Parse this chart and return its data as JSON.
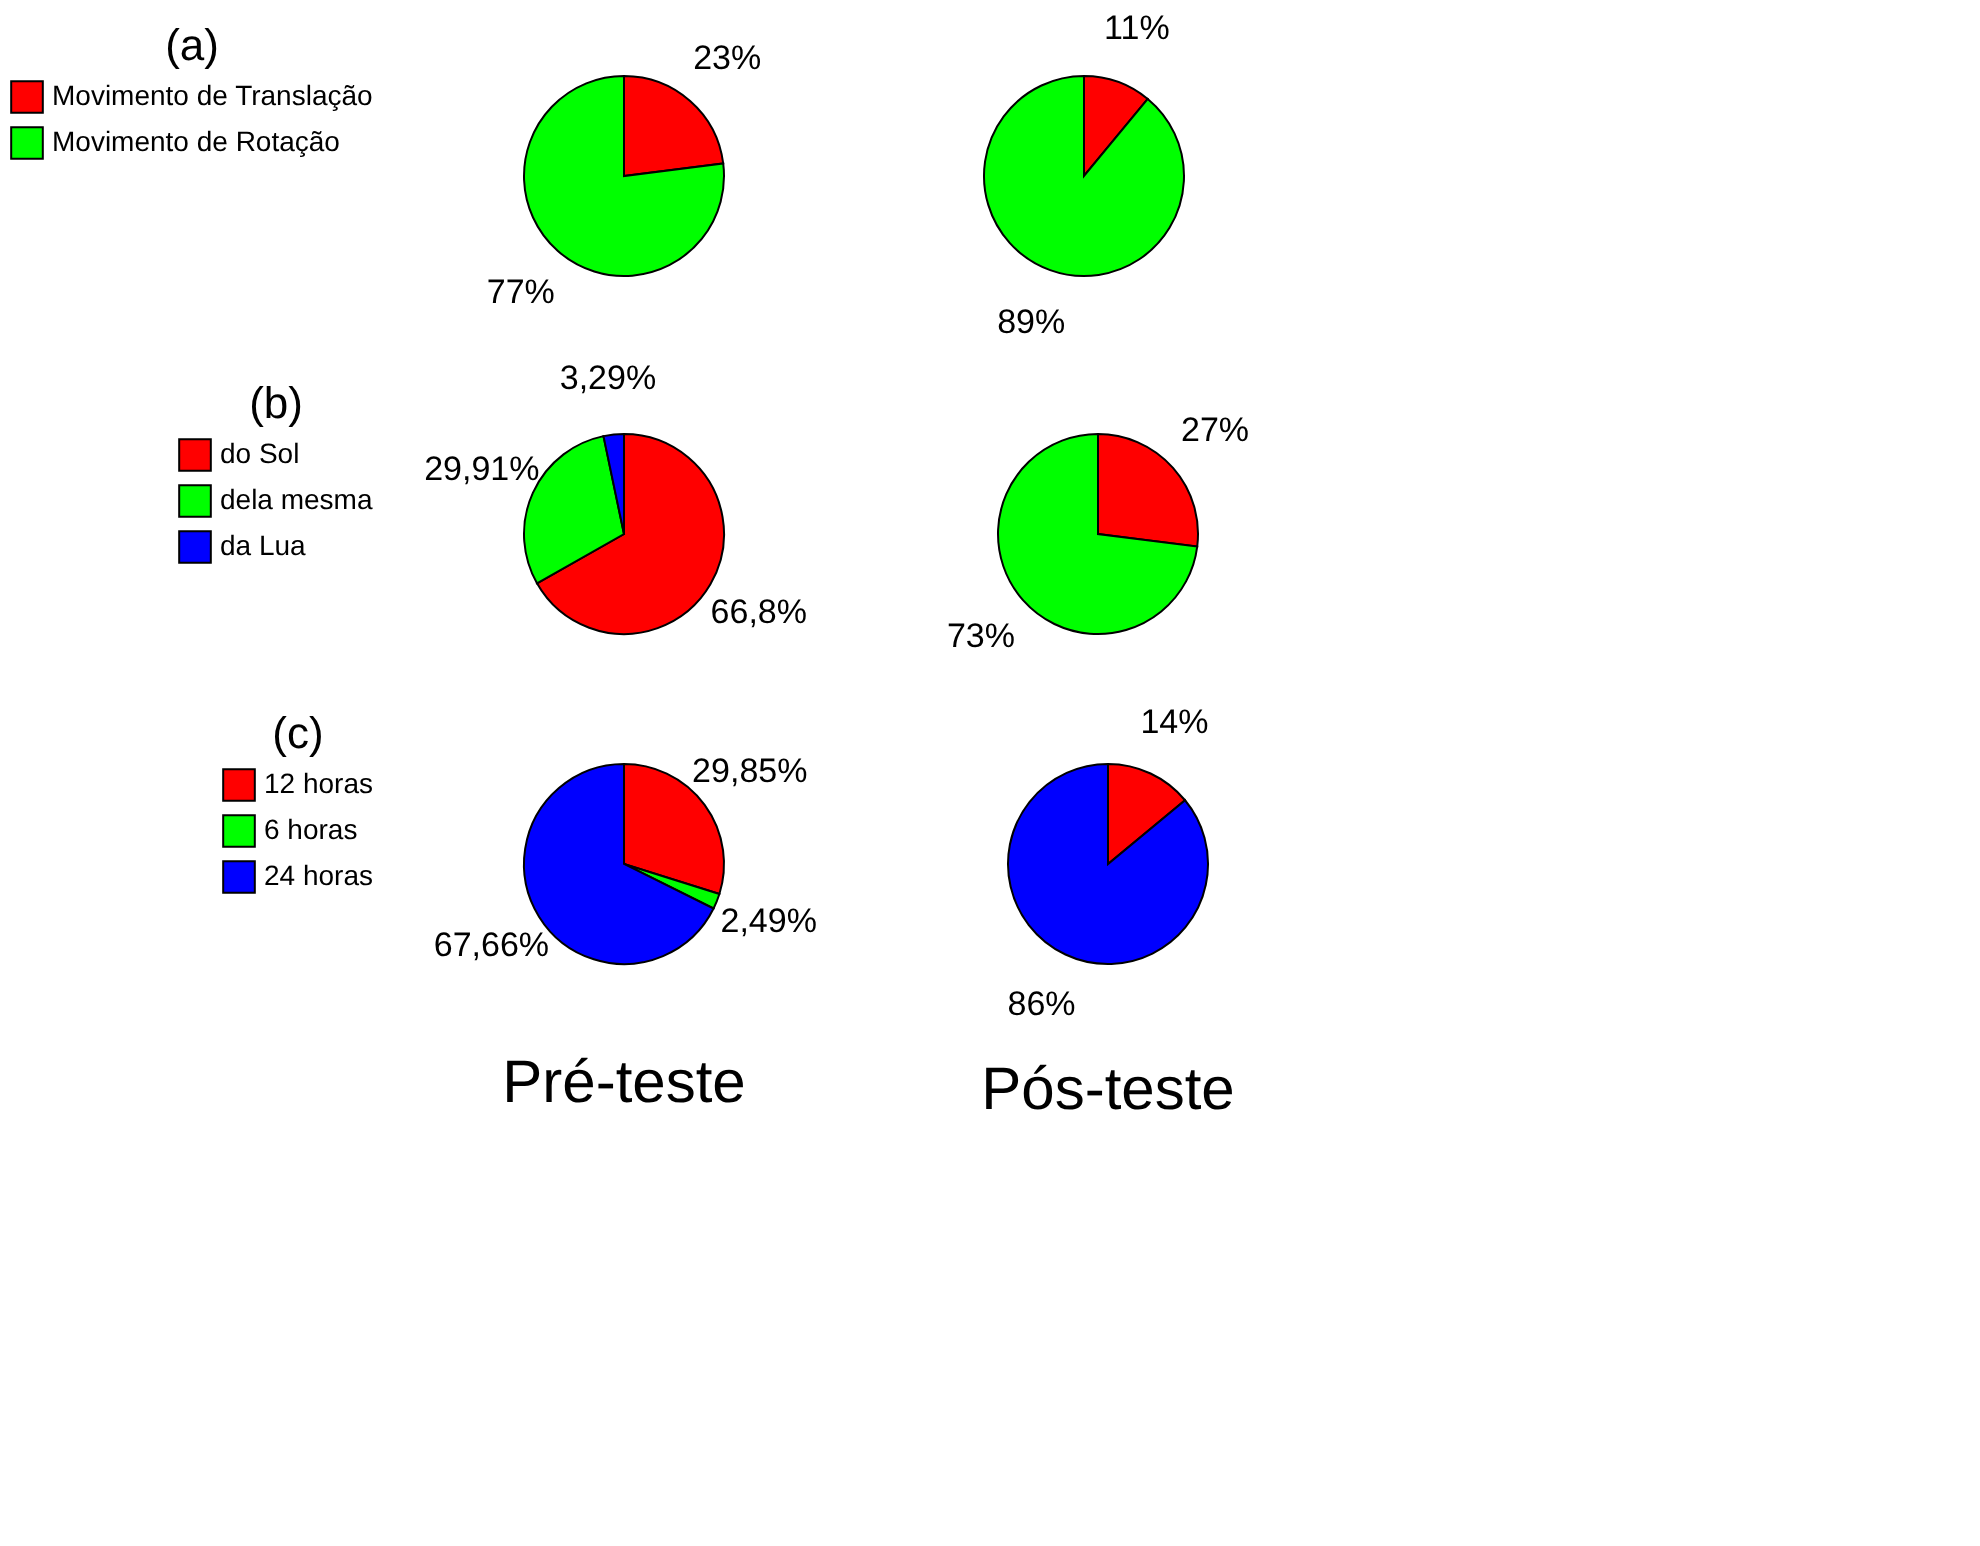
{
  "chart_data": [
    {
      "type": "pie",
      "legend_title": "(a)",
      "legend": "left",
      "categories": [
        "Movimento de Translação",
        "Movimento de Rotação"
      ],
      "values": [
        23,
        77
      ],
      "colors": [
        "#ff0000",
        "#00ff00"
      ],
      "value_labels": [
        "23%",
        "77%"
      ]
    },
    {
      "type": "pie",
      "categories": [
        null,
        null
      ],
      "values": [
        11,
        89
      ],
      "colors": [
        "#ff0000",
        "#00ff00"
      ],
      "value_labels": [
        "11%",
        "89%"
      ]
    },
    {
      "type": "pie",
      "legend_title": "(b)",
      "legend": "left",
      "categories": [
        "do Sol",
        "dela mesma",
        "da Lua"
      ],
      "values": [
        66.8,
        29.91,
        3.29
      ],
      "colors": [
        "#ff0000",
        "#00ff00",
        "#0000ff"
      ],
      "value_labels": [
        "66,8%",
        "29,91%",
        "3,29%"
      ]
    },
    {
      "type": "pie",
      "categories": [
        null,
        null
      ],
      "values": [
        27,
        73
      ],
      "colors": [
        "#ff0000",
        "#00ff00"
      ],
      "value_labels": [
        "27%",
        "73%"
      ]
    },
    {
      "type": "pie",
      "legend_title": "(c)",
      "legend": "left",
      "xlabel": "Pré-teste",
      "categories": [
        "12 horas",
        "6 horas",
        "24 horas"
      ],
      "values": [
        29.85,
        2.49,
        67.66
      ],
      "colors": [
        "#ff0000",
        "#00ff00",
        "#0000ff"
      ],
      "value_labels": [
        "29,85%",
        "2,49%",
        "67,66%"
      ]
    },
    {
      "type": "pie",
      "xlabel": "Pós-teste",
      "categories": [
        null,
        null
      ],
      "values": [
        14,
        86
      ],
      "colors": [
        "#ff0000",
        "#0000ff"
      ],
      "value_labels": [
        "14%",
        "86%"
      ]
    }
  ]
}
